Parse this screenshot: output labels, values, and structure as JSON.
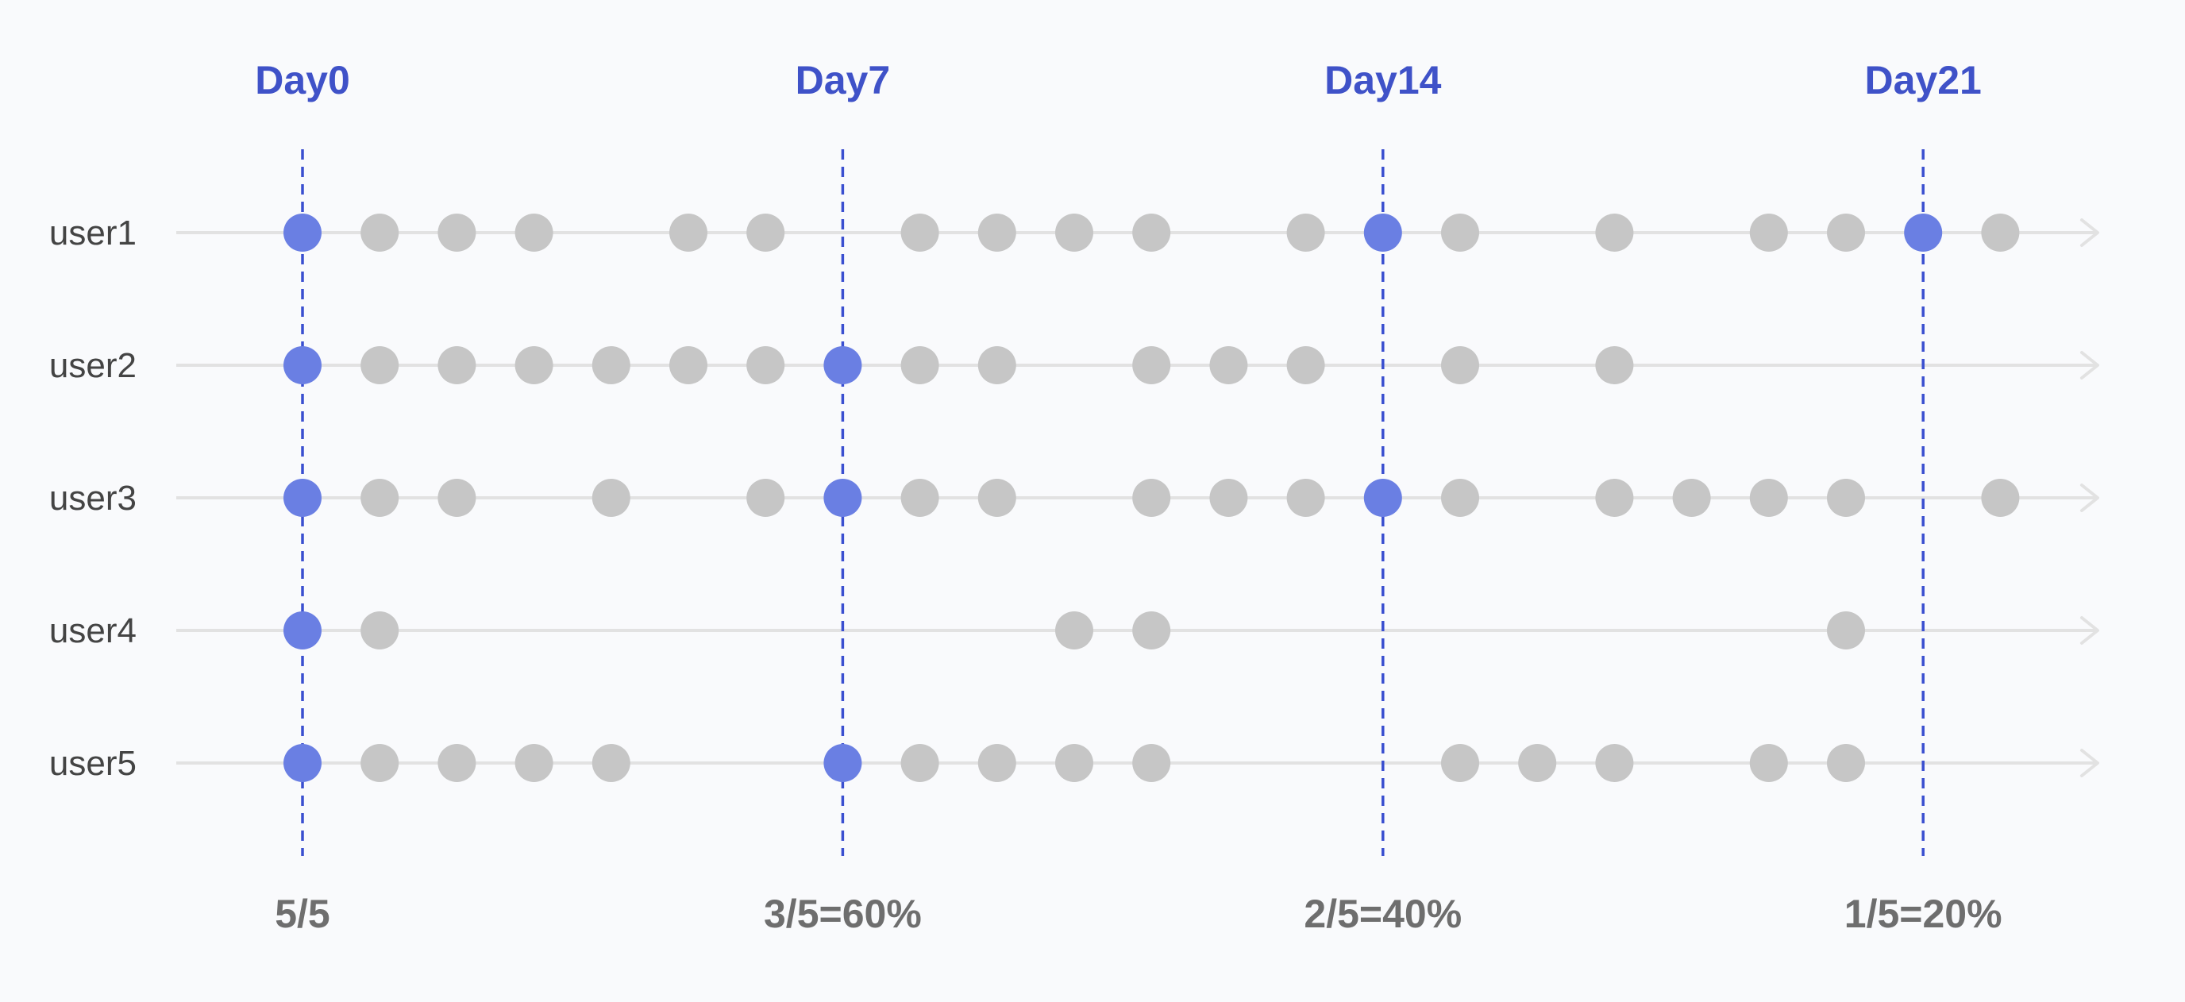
{
  "days": [
    {
      "label": "Day0",
      "day": 0,
      "ratio": "5/5"
    },
    {
      "label": "Day7",
      "day": 7,
      "ratio": "3/5=60%"
    },
    {
      "label": "Day14",
      "day": 14,
      "ratio": "2/5=40%"
    },
    {
      "label": "Day21",
      "day": 21,
      "ratio": "1/5=20%"
    }
  ],
  "users": [
    {
      "label": "user1",
      "active_days": [
        0,
        1,
        2,
        3,
        5,
        6,
        8,
        9,
        10,
        11,
        13,
        14,
        15,
        17,
        19,
        20,
        21,
        22
      ]
    },
    {
      "label": "user2",
      "active_days": [
        0,
        1,
        2,
        3,
        4,
        5,
        6,
        7,
        8,
        9,
        11,
        12,
        13,
        15,
        17
      ]
    },
    {
      "label": "user3",
      "active_days": [
        0,
        1,
        2,
        4,
        6,
        7,
        8,
        9,
        11,
        12,
        13,
        14,
        15,
        17,
        18,
        19,
        20,
        22
      ]
    },
    {
      "label": "user4",
      "active_days": [
        0,
        1,
        10,
        11,
        20
      ]
    },
    {
      "label": "user5",
      "active_days": [
        0,
        1,
        2,
        3,
        4,
        7,
        8,
        9,
        10,
        11,
        15,
        16,
        17,
        19,
        20
      ]
    }
  ],
  "colors": {
    "highlight": "#6a7fe3",
    "day_line": "#3a4fd0",
    "day_text": "#3f52c8",
    "activity": "#c6c6c6",
    "track": "#e2e2e2",
    "user_text": "#444444",
    "ratio_text": "#6e6e6e"
  }
}
